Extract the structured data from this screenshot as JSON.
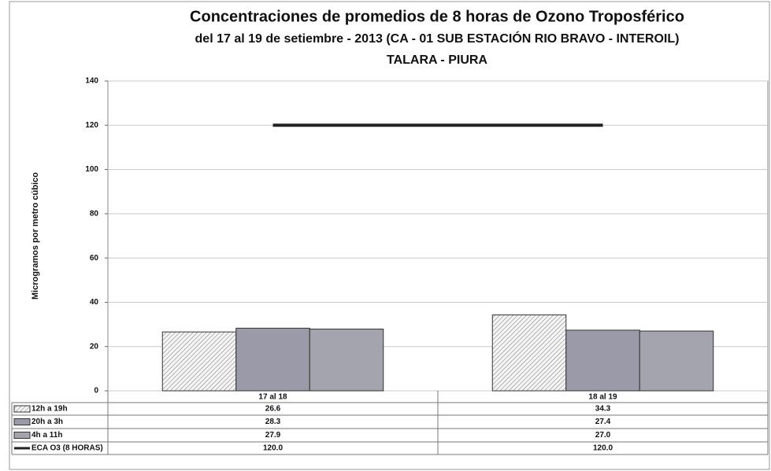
{
  "chart_data": {
    "type": "bar",
    "title": "Concentraciones de promedios de 8 horas de Ozono Troposférico",
    "subtitle": "del 17 al 19 de setiembre - 2013 (CA - 01 SUB ESTACIÓN RIO BRAVO - INTEROIL)",
    "subtitle2": "TALARA - PIURA",
    "ylabel": "Microgramos por metro cúbico",
    "categories": [
      "17 al 18",
      "18 al 19"
    ],
    "series": [
      {
        "name": "12h a 19h",
        "type": "bar",
        "color": "#d8d8d8",
        "pattern": "hatch",
        "values": [
          26.6,
          34.3
        ]
      },
      {
        "name": "20h a 3h",
        "type": "bar",
        "color": "#9a9aa8",
        "values": [
          28.3,
          27.4
        ]
      },
      {
        "name": "4h a 11h",
        "type": "bar",
        "color": "#a4a4ae",
        "values": [
          27.9,
          27.0
        ],
        "value_labels": [
          "27.9",
          "27.0"
        ]
      },
      {
        "name": "ECA O3 (8 HORAS)",
        "type": "line",
        "color": "#222222",
        "values": [
          120.0,
          120.0
        ],
        "value_labels": [
          "120.0",
          "120.0"
        ]
      }
    ],
    "ylim": [
      0,
      140
    ],
    "yticks": [
      0,
      20,
      40,
      60,
      80,
      100,
      120,
      140
    ],
    "grid": true
  }
}
